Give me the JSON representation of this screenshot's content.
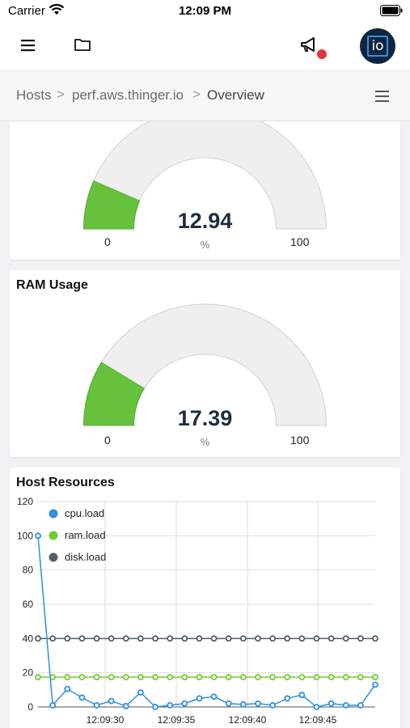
{
  "status_bar": {
    "carrier": "Carrier",
    "time": "12:09 PM"
  },
  "app_bar": {
    "logo_text": "io",
    "colors": {
      "notification": "#e8333a",
      "logo_bg": "#0f2540"
    }
  },
  "breadcrumb": {
    "items": [
      "Hosts",
      "perf.aws.thinger.io",
      "Overview"
    ],
    "separator": ">"
  },
  "cpu_gauge": {
    "value": "12.94",
    "fraction": 0.1294,
    "unit": "%",
    "min": "0",
    "max": "100"
  },
  "ram_gauge": {
    "title": "RAM Usage",
    "value": "17.39",
    "fraction": 0.1739,
    "unit": "%",
    "min": "0",
    "max": "100"
  },
  "host_resources": {
    "title": "Host Resources"
  },
  "chart_data": {
    "type": "line",
    "y_ticks": [
      0,
      20,
      40,
      60,
      80,
      100,
      120
    ],
    "ylim": [
      0,
      120
    ],
    "x_tick_labels": [
      "12:09:30",
      "12:09:35",
      "12:09:40",
      "12:09:45"
    ],
    "grid": true,
    "legend": "top-left",
    "series": [
      {
        "name": "cpu.load",
        "color": "#2f8fe0",
        "values": [
          100,
          1,
          10.5,
          5.5,
          1,
          3.5,
          0.5,
          8.5,
          0,
          1,
          2,
          5,
          6,
          2,
          1.5,
          2,
          1,
          5,
          7,
          0,
          2,
          1,
          1,
          13
        ]
      },
      {
        "name": "ram.load",
        "color": "#6fcf2f",
        "values": [
          17.4,
          17.4,
          17.4,
          17.4,
          17.4,
          17.4,
          17.4,
          17.4,
          17.4,
          17.4,
          17.4,
          17.4,
          17.4,
          17.4,
          17.4,
          17.4,
          17.4,
          17.4,
          17.4,
          17.4,
          17.4,
          17.4,
          17.4,
          17.4
        ]
      },
      {
        "name": "disk.load",
        "color": "#4f6068",
        "values": [
          40,
          40,
          40,
          40,
          40,
          40,
          40,
          40,
          40,
          40,
          40,
          40,
          40,
          40,
          40,
          40,
          40,
          40,
          40,
          40,
          40,
          40,
          40,
          40
        ]
      }
    ]
  }
}
